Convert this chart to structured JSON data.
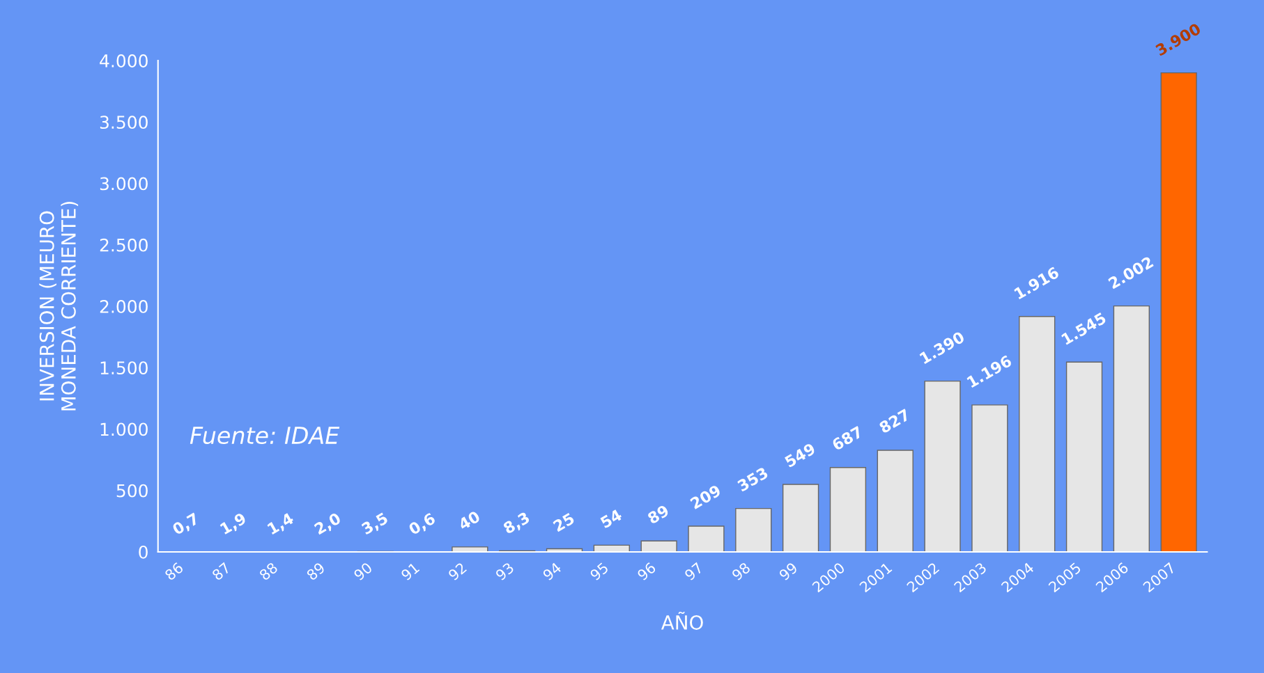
{
  "chart_data": {
    "type": "bar",
    "xlabel": "AÑO",
    "ylabel": "INVERSION (MEURO\nMONEDA CORRIENTE)",
    "categories": [
      "86",
      "87",
      "88",
      "89",
      "90",
      "91",
      "92",
      "93",
      "94",
      "95",
      "96",
      "97",
      "98",
      "99",
      "2000",
      "2001",
      "2002",
      "2003",
      "2004",
      "2005",
      "2006",
      "2007"
    ],
    "values": [
      0.7,
      1.9,
      1.4,
      2.0,
      3.5,
      0.6,
      40,
      8.3,
      25,
      54,
      89,
      209,
      353,
      549,
      687,
      827,
      1390,
      1196,
      1916,
      1545,
      2002,
      3900
    ],
    "value_labels": [
      "0,7",
      "1,9",
      "1,4",
      "2,0",
      "3,5",
      "0,6",
      "40",
      "8,3",
      "25",
      "54",
      "89",
      "209",
      "353",
      "549",
      "687",
      "827",
      "1.390",
      "1.196",
      "1.916",
      "1.545",
      "2.002",
      "3.900"
    ],
    "colors": [
      "#e6e6e6",
      "#e6e6e6",
      "#e6e6e6",
      "#e6e6e6",
      "#e6e6e6",
      "#e6e6e6",
      "#e6e6e6",
      "#e6e6e6",
      "#e6e6e6",
      "#e6e6e6",
      "#e6e6e6",
      "#e6e6e6",
      "#e6e6e6",
      "#e6e6e6",
      "#e6e6e6",
      "#e6e6e6",
      "#e6e6e6",
      "#e6e6e6",
      "#e6e6e6",
      "#e6e6e6",
      "#e6e6e6",
      "#ff6600"
    ],
    "ylim": [
      0,
      4000
    ],
    "yticks": [
      0,
      {
        "value": 500,
        "label": "500"
      },
      {
        "value": 1000,
        "label": "1.000"
      },
      {
        "value": 1500,
        "label": "1.500"
      },
      {
        "value": 2000,
        "label": "2.000"
      },
      {
        "value": 2500,
        "label": "2.500"
      },
      {
        "value": 3000,
        "label": "3.000"
      },
      {
        "value": 3500,
        "label": "3.500"
      },
      {
        "value": 4000,
        "label": "4.000"
      }
    ],
    "grid": false,
    "annotations": [
      "Fuente: IDAE"
    ]
  }
}
